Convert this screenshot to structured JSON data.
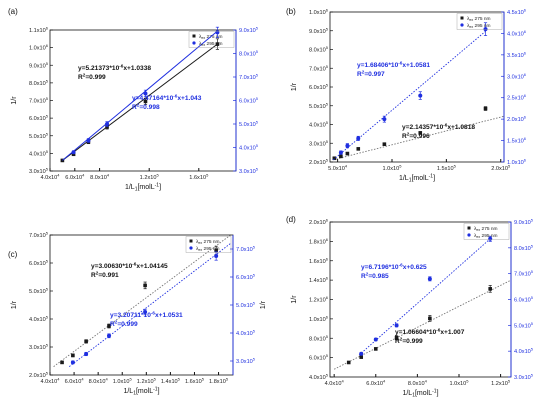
{
  "chart_data": [
    {
      "panel": "(a)",
      "type": "scatter",
      "xlabel": "1/L",
      "xlabel_sub": "1",
      "xlabel_unit": "[molL",
      "xlabel_unit_sup": "-1",
      "xlabel_unit_end": "]",
      "ylabel": "1/r",
      "xlim": [
        4.0,
        19.0
      ],
      "x_exp": 4,
      "xticks": [
        {
          "v": 4,
          "m": "4.0"
        },
        {
          "v": 6,
          "m": "6.0"
        },
        {
          "v": 8,
          "m": "8.0"
        },
        {
          "v": 12,
          "m": "1.2"
        },
        {
          "v": 16,
          "m": "1.6"
        }
      ],
      "xtick_exps": [
        "4",
        "4",
        "4",
        "5",
        "5"
      ],
      "left_axis": {
        "min": 3.0,
        "max": 11.0,
        "exp": 5,
        "ticks": [
          "3.0",
          "4.0",
          "5.0",
          "6.0",
          "7.0",
          "8.0",
          "9.0",
          "1.0",
          "1.1"
        ],
        "tick_exps": [
          "5",
          "5",
          "5",
          "5",
          "5",
          "5",
          "5",
          "6",
          "6"
        ],
        "tick_values": [
          3,
          4,
          5,
          6,
          7,
          8,
          9,
          10,
          11
        ]
      },
      "right_axis": {
        "min": 3.0,
        "max": 9.0,
        "ticks": [
          "3.0",
          "4.0",
          "5.0",
          "6.0",
          "7.0",
          "8.0",
          "9.0"
        ],
        "tick_exps": [
          "5",
          "5",
          "5",
          "5",
          "5",
          "5",
          "5"
        ],
        "tick_values": [
          3,
          4,
          5,
          6,
          7,
          8,
          9
        ]
      },
      "series": [
        {
          "name": "λ",
          "name_sub": "ex",
          "name_unit": "275 nm",
          "marker": "square",
          "color": "#1a1a1a",
          "axis": "left",
          "line": "solid",
          "x": [
            5.0,
            5.9,
            7.1,
            8.6,
            11.7,
            17.5
          ],
          "y": [
            3.6,
            3.95,
            4.65,
            5.5,
            6.95,
            10.2
          ],
          "err": [
            0.06,
            0.07,
            0.1,
            0.12,
            0.18,
            0.3
          ],
          "fit": [
            [
              5.0,
              3.6
            ],
            [
              17.5,
              10.2
            ]
          ]
        },
        {
          "name": "λ",
          "name_sub": "ex",
          "name_unit": "295 nm",
          "marker": "circle",
          "color": "#1f2fe0",
          "axis": "right",
          "line": "solid",
          "x": [
            5.9,
            7.1,
            8.6,
            11.7,
            17.5
          ],
          "y": [
            3.8,
            4.3,
            5.0,
            6.3,
            8.9
          ],
          "err": [
            0.06,
            0.08,
            0.1,
            0.14,
            0.22
          ],
          "fit": [
            [
              5.0,
              3.45
            ],
            [
              17.5,
              8.95
            ]
          ]
        }
      ],
      "annotations": [
        {
          "text": "y=5.21373*10",
          "sup": "-6",
          "text2": "x+1.0338",
          "color": "#111111"
        },
        {
          "text": "R",
          "sup": "2",
          "text2": "=0.999",
          "color": "#111111"
        },
        {
          "text": "y=4.47164*10",
          "sup": "-6",
          "text2": "x+1.043",
          "color": "#1f2fe0"
        },
        {
          "text": "R",
          "sup": "2",
          "text2": "=0.998",
          "color": "#1f2fe0"
        }
      ]
    },
    {
      "panel": "(b)",
      "type": "scatter",
      "xlabel": "1/L",
      "xlabel_sub": "1",
      "xlabel_unit": "[molL",
      "xlabel_unit_sup": "-1",
      "xlabel_unit_end": "]",
      "ylabel": "1/r",
      "xlim": [
        4.3,
        20.3
      ],
      "x_exp": 4,
      "xticks": [
        {
          "v": 5,
          "m": "5.0"
        },
        {
          "v": 10,
          "m": "1.0"
        },
        {
          "v": 15,
          "m": "1.5"
        },
        {
          "v": 20,
          "m": "2.0"
        }
      ],
      "xtick_exps": [
        "4",
        "5",
        "5",
        "5"
      ],
      "left_axis": {
        "min": 2.0,
        "max": 10.0,
        "ticks": [
          "2.0",
          "3.0",
          "4.0",
          "5.0",
          "6.0",
          "7.0",
          "8.0",
          "9.0",
          "1.0"
        ],
        "tick_exps": [
          "5",
          "5",
          "5",
          "5",
          "5",
          "5",
          "5",
          "5",
          "6"
        ],
        "tick_values": [
          2,
          3,
          4,
          5,
          6,
          7,
          8,
          9,
          10
        ]
      },
      "right_axis": {
        "min": 1.0,
        "max": 4.5,
        "ticks": [
          "1.0",
          "1.5",
          "2.0",
          "2.5",
          "3.0",
          "3.5",
          "4.0",
          "4.5"
        ],
        "tick_exps": [
          "6",
          "6",
          "6",
          "6",
          "6",
          "6",
          "6",
          "6"
        ],
        "tick_values": [
          1.0,
          1.5,
          2.0,
          2.5,
          3.0,
          3.5,
          4.0,
          4.5
        ]
      },
      "series": [
        {
          "name": "λ",
          "name_sub": "ex",
          "name_unit": "275 nm",
          "marker": "square",
          "color": "#1a1a1a",
          "axis": "left",
          "line": "dotted",
          "x": [
            4.7,
            5.3,
            5.9,
            6.9,
            9.3,
            12.6,
            18.6
          ],
          "y": [
            2.2,
            2.3,
            2.45,
            2.7,
            2.95,
            3.55,
            4.85
          ],
          "err": [
            0.03,
            0.03,
            0.04,
            0.05,
            0.06,
            0.07,
            0.1
          ],
          "fit": [
            [
              4.6,
              2.12
            ],
            [
              20.3,
              4.44
            ]
          ]
        },
        {
          "name": "λ",
          "name_sub": "ex",
          "name_unit": "295 nm",
          "marker": "circle",
          "color": "#1f2fe0",
          "axis": "right",
          "line": "dotted",
          "x": [
            5.3,
            5.9,
            6.9,
            9.3,
            12.6,
            18.6
          ],
          "y": [
            1.22,
            1.38,
            1.55,
            2.0,
            2.55,
            4.1
          ],
          "err": [
            0.04,
            0.05,
            0.05,
            0.07,
            0.09,
            0.15
          ],
          "fit": [
            [
              4.6,
              1.05
            ],
            [
              18.6,
              4.05
            ]
          ]
        }
      ],
      "annotations": [
        {
          "text": "y=1.68406*10",
          "sup": "-6",
          "text2": "x+1.0581",
          "color": "#1f2fe0"
        },
        {
          "text": "R",
          "sup": "2",
          "text2": "=0.997",
          "color": "#1f2fe0"
        },
        {
          "text": "y=2.14357*10",
          "sup": "-6",
          "text2": "x+1.0818",
          "color": "#111111"
        },
        {
          "text": "R",
          "sup": "2",
          "text2": "=0.996",
          "color": "#111111"
        }
      ]
    },
    {
      "panel": "(c)",
      "type": "scatter",
      "xlabel": "1/L",
      "xlabel_sub": "1",
      "xlabel_unit": "[molL",
      "xlabel_unit_sup": "-1",
      "xlabel_unit_end": "]",
      "ylabel": "1/r",
      "xlim": [
        4.0,
        19.2
      ],
      "x_exp": 4,
      "xticks": [
        {
          "v": 4,
          "m": "4.0"
        },
        {
          "v": 6,
          "m": "6.0"
        },
        {
          "v": 8,
          "m": "8.0"
        },
        {
          "v": 10,
          "m": "1.0"
        },
        {
          "v": 12,
          "m": "1.2"
        },
        {
          "v": 14,
          "m": "1.4"
        },
        {
          "v": 16,
          "m": "1.6"
        },
        {
          "v": 18,
          "m": "1.8"
        }
      ],
      "xtick_exps": [
        "4",
        "4",
        "4",
        "5",
        "5",
        "5",
        "5",
        "5"
      ],
      "left_axis": {
        "min": 2.0,
        "max": 7.0,
        "ticks": [
          "2.0",
          "3.0",
          "4.0",
          "5.0",
          "6.0",
          "7.0"
        ],
        "tick_exps": [
          "5",
          "5",
          "5",
          "5",
          "5",
          "5"
        ],
        "tick_values": [
          2,
          3,
          4,
          5,
          6,
          7
        ]
      },
      "right_axis": {
        "min": 2.5,
        "max": 7.5,
        "ticks": [
          "3.0",
          "4.0",
          "5.0",
          "6.0",
          "7.0"
        ],
        "tick_exps": [
          "5",
          "5",
          "5",
          "5",
          "5"
        ],
        "tick_values": [
          3,
          4,
          5,
          6,
          7
        ]
      },
      "right_ylabel": "1/r",
      "series": [
        {
          "name": "λ",
          "name_sub": "ex",
          "name_unit": "275 nm",
          "marker": "square",
          "color": "#1a1a1a",
          "axis": "left",
          "line": "dotted",
          "x": [
            5.0,
            5.9,
            7.0,
            8.9,
            11.9,
            17.8
          ],
          "y": [
            2.45,
            2.7,
            3.2,
            3.75,
            5.2,
            6.45
          ],
          "err": [
            0.04,
            0.05,
            0.06,
            0.07,
            0.12,
            0.15
          ],
          "fit": [
            [
              4.3,
              2.3
            ],
            [
              19.0,
              7.0
            ]
          ]
        },
        {
          "name": "λ",
          "name_sub": "ex",
          "name_unit": "295 nm",
          "marker": "circle",
          "color": "#1f2fe0",
          "axis": "right",
          "line": "dotted",
          "x": [
            5.9,
            7.0,
            8.9,
            11.9,
            17.8
          ],
          "y": [
            2.95,
            3.25,
            3.9,
            4.75,
            6.75
          ],
          "err": [
            0.05,
            0.06,
            0.07,
            0.1,
            0.15
          ],
          "fit": [
            [
              5.6,
              2.8
            ],
            [
              19.0,
              7.2
            ]
          ]
        }
      ],
      "annotations": [
        {
          "text": "y=3.00630*10",
          "sup": "-6",
          "text2": "x+1.04145",
          "color": "#111111"
        },
        {
          "text": "R",
          "sup": "2",
          "text2": "=0.991",
          "color": "#111111"
        },
        {
          "text": "y=3.20711*10",
          "sup": "-6",
          "text2": "x+1.0531",
          "color": "#1f2fe0"
        },
        {
          "text": "R",
          "sup": "2",
          "text2": "=0.999",
          "color": "#1f2fe0"
        }
      ]
    },
    {
      "panel": "(d)",
      "type": "scatter",
      "xlabel": "1/L",
      "xlabel_sub": "1",
      "xlabel_unit": "[molL",
      "xlabel_unit_sup": "-1",
      "xlabel_unit_end": "]",
      "ylabel": "1/r",
      "xlim": [
        3.8,
        12.5
      ],
      "x_exp": 4,
      "xticks": [
        {
          "v": 4,
          "m": "4.0"
        },
        {
          "v": 6,
          "m": "6.0"
        },
        {
          "v": 8,
          "m": "8.0"
        },
        {
          "v": 10,
          "m": "1.0"
        },
        {
          "v": 12,
          "m": "1.2"
        }
      ],
      "xtick_exps": [
        "4",
        "4",
        "4",
        "5",
        "5"
      ],
      "left_axis": {
        "min": 4.0,
        "max": 20.0,
        "ticks": [
          "4.0",
          "6.0",
          "8.0",
          "1.0",
          "1.2",
          "1.4",
          "1.6",
          "1.8",
          "2.0"
        ],
        "tick_exps": [
          "5",
          "5",
          "5",
          "6",
          "6",
          "6",
          "6",
          "6",
          "6"
        ],
        "tick_values": [
          4,
          6,
          8,
          10,
          12,
          14,
          16,
          18,
          20
        ]
      },
      "right_axis": {
        "min": 3.0,
        "max": 9.0,
        "ticks": [
          "3.0",
          "4.0",
          "5.0",
          "6.0",
          "7.0",
          "8.0",
          "9.0"
        ],
        "tick_exps": [
          "5",
          "5",
          "5",
          "5",
          "5",
          "5",
          "5"
        ],
        "tick_values": [
          3,
          4,
          5,
          6,
          7,
          8,
          9
        ]
      },
      "series": [
        {
          "name": "λ",
          "name_sub": "ex",
          "name_unit": "275 nm",
          "marker": "square",
          "color": "#1a1a1a",
          "axis": "left",
          "line": "dotted",
          "x": [
            4.7,
            5.3,
            6.0,
            7.0,
            8.6,
            11.5
          ],
          "y": [
            5.5,
            6.05,
            6.9,
            8.05,
            10.05,
            13.1
          ],
          "err": [
            0.1,
            0.1,
            0.12,
            0.2,
            0.3,
            0.35
          ],
          "fit": [
            [
              4.0,
              4.8
            ],
            [
              12.5,
              14.0
            ]
          ]
        },
        {
          "name": "λ",
          "name_sub": "ex",
          "name_unit": "295 nm",
          "marker": "circle",
          "color": "#1f2fe0",
          "axis": "right",
          "line": "dotted",
          "x": [
            5.3,
            6.0,
            7.0,
            8.6,
            11.5
          ],
          "y": [
            3.9,
            4.45,
            5.0,
            6.8,
            8.35
          ],
          "err": [
            0.04,
            0.05,
            0.06,
            0.08,
            0.1
          ],
          "fit": [
            [
              5.2,
              3.85
            ],
            [
              11.5,
              8.35
            ]
          ]
        }
      ],
      "annotations": [
        {
          "text": "y=6.7196*10",
          "sup": "-6",
          "text2": "x+0.625",
          "color": "#1f2fe0"
        },
        {
          "text": "R",
          "sup": "2",
          "text2": "=0.985",
          "color": "#1f2fe0"
        },
        {
          "text": "y=1.06604*10",
          "sup": "-6",
          "text2": "x+1.007",
          "color": "#111111"
        },
        {
          "text": "R",
          "sup": "2",
          "text2": "=0.999",
          "color": "#111111"
        }
      ]
    }
  ]
}
